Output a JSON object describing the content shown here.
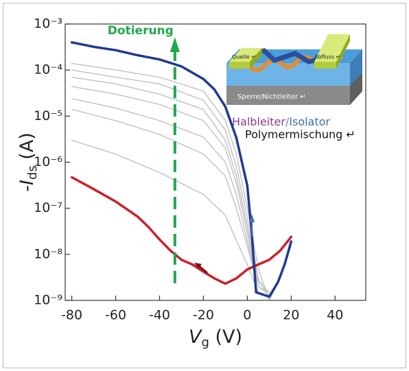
{
  "chart_data": {
    "type": "line",
    "yscale": "log",
    "xlim": [
      -83,
      54
    ],
    "ylim": [
      1e-09,
      0.001
    ],
    "xticks": [
      -80,
      -60,
      -40,
      -20,
      0,
      20,
      40
    ],
    "yticks": [
      {
        "value": 1e-09,
        "label": "10⁻⁹"
      },
      {
        "value": 1e-08,
        "label": "10⁻⁸"
      },
      {
        "value": 1e-07,
        "label": "10⁻⁷"
      },
      {
        "value": 1e-06,
        "label": "10⁻⁶"
      },
      {
        "value": 1e-05,
        "label": "10⁻⁵"
      },
      {
        "value": 0.0001,
        "label": "10⁻⁴"
      },
      {
        "value": 0.001,
        "label": "10⁻³"
      }
    ],
    "xlabel": [
      "V",
      "g",
      " (V)"
    ],
    "ylabel": [
      "-I",
      "ds",
      " (A)"
    ],
    "annotation": "Dotierung",
    "inset_labels": {
      "source": "Quelle ↵",
      "drain": "Abfluss ↵",
      "barrier": "Sperre/Nichtleiter ↵"
    },
    "caption_line1": [
      "Halbleiter",
      "/",
      "Isolator"
    ],
    "caption_line2": "Polymermischung ↵",
    "series": [
      {
        "color": "#c4c4c4",
        "width": 1.5,
        "x": [
          -80,
          -60,
          -40,
          -20,
          -10,
          -5,
          0,
          5,
          10,
          15,
          20
        ],
        "values": [
          0.00014,
          0.0001,
          7e-05,
          3.5e-05,
          8e-06,
          1.5e-06,
          1e-07,
          5e-09,
          1e-09,
          3e-09,
          1.5e-08
        ]
      },
      {
        "color": "#c4c4c4",
        "width": 1.5,
        "x": [
          -80,
          -60,
          -40,
          -20,
          -10,
          -5,
          0,
          5,
          10
        ],
        "values": [
          0.0001,
          7e-05,
          5e-05,
          2.2e-05,
          5e-06,
          8e-07,
          6e-08,
          3e-09,
          1.2e-09
        ]
      },
      {
        "color": "#c4c4c4",
        "width": 1.5,
        "x": [
          -80,
          -60,
          -40,
          -20,
          -10,
          -5,
          0,
          5,
          10
        ],
        "values": [
          7e-05,
          5e-05,
          3e-05,
          1.4e-05,
          3e-06,
          5e-07,
          4e-08,
          2.5e-09,
          1.5e-09
        ]
      },
      {
        "color": "#c4c4c4",
        "width": 1.5,
        "x": [
          -80,
          -60,
          -40,
          -20,
          -10,
          -5,
          0,
          5,
          10
        ],
        "values": [
          4.4e-05,
          3e-05,
          1.8e-05,
          8e-06,
          2e-06,
          3.5e-07,
          3e-08,
          2e-09,
          1.3e-09
        ]
      },
      {
        "color": "#c4c4c4",
        "width": 1.5,
        "x": [
          -80,
          -60,
          -40,
          -20,
          -10,
          -5,
          0,
          5,
          10
        ],
        "values": [
          2.4e-05,
          1.5e-05,
          8e-06,
          3.5e-06,
          1e-06,
          2e-07,
          2e-08,
          2e-09,
          1.5e-09
        ]
      },
      {
        "color": "#c4c4c4",
        "width": 1.5,
        "x": [
          -80,
          -60,
          -40,
          -20,
          -10,
          -5,
          0,
          5,
          10
        ],
        "values": [
          1.4e-05,
          8e-06,
          4e-06,
          1.5e-06,
          5e-07,
          1e-07,
          1.5e-08,
          2e-09,
          1.5e-09
        ]
      },
      {
        "color": "#c4c4c4",
        "width": 1.5,
        "x": [
          -80,
          -60,
          -40,
          -20,
          -10,
          -5,
          0,
          5,
          10
        ],
        "values": [
          3e-06,
          1.5e-06,
          6e-07,
          2e-07,
          7e-08,
          2e-08,
          6e-09,
          1.5e-09,
          1.2e-09
        ]
      },
      {
        "color": "#cc1f2a",
        "width": 3.5,
        "x": [
          -80,
          -70,
          -60,
          -50,
          -45,
          -40,
          -35,
          -30,
          -25,
          -20,
          -15,
          -10,
          -5,
          0,
          5,
          10,
          15,
          20
        ],
        "values": [
          4.7e-07,
          2.6e-07,
          1.4e-07,
          6.6e-08,
          3.9e-08,
          2.1e-08,
          1.2e-08,
          7.6e-09,
          6e-09,
          4.2e-09,
          3e-09,
          2.3e-09,
          3e-09,
          4.7e-09,
          6e-09,
          7.6e-09,
          1.2e-08,
          2.4e-08
        ]
      },
      {
        "color": "#1f3a93",
        "width": 3.5,
        "x": [
          -80,
          -70,
          -60,
          -50,
          -40,
          -30,
          -20,
          -15,
          -10,
          -5,
          0,
          2,
          4,
          10,
          14,
          17,
          20
        ],
        "values": [
          0.0004,
          0.00032,
          0.00027,
          0.00021,
          0.00017,
          0.00012,
          6.4e-05,
          3.8e-05,
          1.6e-05,
          3.4e-06,
          3.1e-07,
          3e-08,
          1.5e-09,
          1.2e-09,
          2.5e-09,
          6e-09,
          1.9e-08
        ]
      }
    ]
  }
}
